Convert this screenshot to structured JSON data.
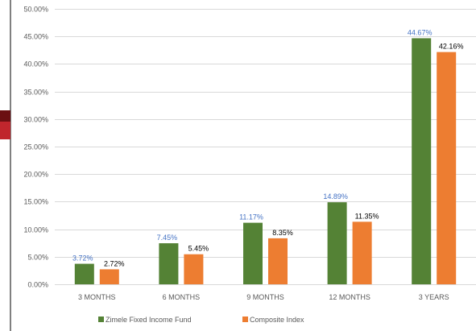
{
  "chart_data": {
    "type": "bar",
    "categories": [
      "3 MONTHS",
      "6 MONTHS",
      "9 MONTHS",
      "12 MONTHS",
      "3 YEARS"
    ],
    "series": [
      {
        "name": "Zimele Fixed Income Fund",
        "values": [
          3.72,
          7.45,
          11.17,
          14.89,
          44.67
        ],
        "labels": [
          "3.72%",
          "7.45%",
          "11.17%",
          "14.89%",
          "44.67%"
        ],
        "color": "#548235",
        "label_color": "#4472C4"
      },
      {
        "name": "Composite Index",
        "values": [
          2.72,
          5.45,
          8.35,
          11.35,
          42.16
        ],
        "labels": [
          "2.72%",
          "5.45%",
          "8.35%",
          "11.35%",
          "42.16%"
        ],
        "color": "#ED7D31",
        "label_color": "#000000"
      }
    ],
    "ylim": [
      0,
      50
    ],
    "yticks": [
      0,
      5,
      10,
      15,
      20,
      25,
      30,
      35,
      40,
      45,
      50
    ],
    "ytick_labels": [
      "0.00%",
      "5.00%",
      "10.00%",
      "15.00%",
      "20.00%",
      "25.00%",
      "30.00%",
      "35.00%",
      "40.00%",
      "45.00%",
      "50.00%"
    ],
    "grid": true,
    "legend_position": "bottom",
    "title": "",
    "xlabel": "",
    "ylabel": ""
  },
  "colors": {
    "left_strip_dark": "#6B0F12",
    "left_strip_red": "#C0262D"
  }
}
